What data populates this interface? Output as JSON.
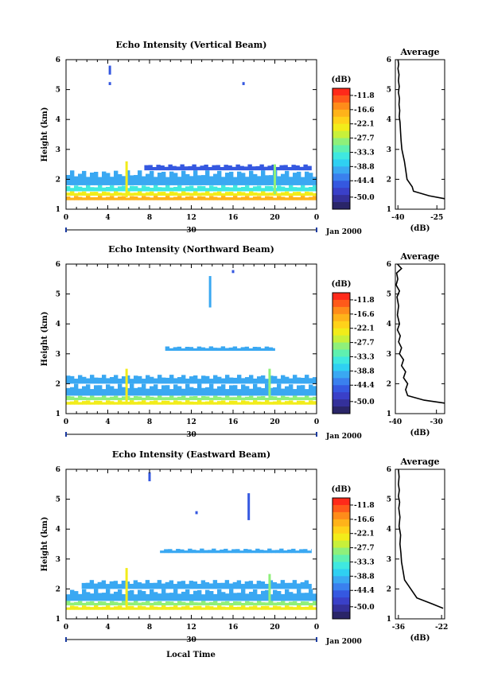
{
  "figure": {
    "x_axis_label": "Local Time",
    "date_label": "Jan 2000",
    "day_label": "30"
  },
  "colorbar": {
    "unit_label": "(dB)",
    "tick_labels": [
      "-11.8",
      "-16.6",
      "-22.1",
      "-27.7",
      "-33.3",
      "-38.8",
      "-44.4",
      "-50.0"
    ],
    "colors": [
      "#ff2a1a",
      "#ff5a1a",
      "#ff8c1a",
      "#ffb31a",
      "#ffd21a",
      "#f2ec1a",
      "#c8f03a",
      "#8ff07a",
      "#5ff0b0",
      "#3fe8e0",
      "#2fd0f2",
      "#3aa8f2",
      "#3a80ee",
      "#3558e0",
      "#3a40c8",
      "#34309a",
      "#2a2568"
    ]
  },
  "chart_data": [
    {
      "type": "heatmap",
      "title": "Echo Intensity (Vertical Beam)",
      "ylabel": "Height (km)",
      "xlim": [
        0,
        24
      ],
      "ylim": [
        1,
        6
      ],
      "x_ticks": [
        "0",
        "4",
        "8",
        "12",
        "16",
        "20",
        "0"
      ],
      "y_ticks": [
        "1",
        "2",
        "3",
        "4",
        "5",
        "6"
      ],
      "colorbar_range_db": [
        -50.0,
        -11.8
      ],
      "layers": [
        {
          "height_km": [
            1.3,
            1.45
          ],
          "level": "-16.6",
          "hour_range": [
            0,
            24
          ]
        },
        {
          "height_km": [
            1.45,
            1.6
          ],
          "level": "-22.1",
          "hour_range": [
            0,
            24
          ]
        },
        {
          "height_km": [
            1.6,
            1.8
          ],
          "level": "-33.3",
          "hour_range": [
            0,
            24
          ]
        },
        {
          "height_km": [
            1.8,
            2.3
          ],
          "level": "-38.8",
          "hour_range": [
            0,
            24
          ]
        },
        {
          "height_km": [
            2.3,
            2.5
          ],
          "level": "-44.4",
          "hour_range": [
            7.5,
            23.5
          ]
        }
      ],
      "features": [
        {
          "hour": 5.8,
          "height_km": [
            1.4,
            2.6
          ],
          "level": "-22.1"
        },
        {
          "hour": 20.0,
          "height_km": [
            1.5,
            2.5
          ],
          "level": "-27.7"
        },
        {
          "hour": 4.2,
          "height_km": [
            5.5,
            5.8
          ],
          "level": "-44.4"
        },
        {
          "hour": 4.2,
          "height_km": [
            5.15,
            5.25
          ],
          "level": "-44.4"
        },
        {
          "hour": 17.0,
          "height_km": [
            5.15,
            5.25
          ],
          "level": "-44.4"
        }
      ]
    },
    {
      "type": "line",
      "title": "Average",
      "xlabel": "(dB)",
      "x_ticks": [
        "-40",
        "-25"
      ],
      "xlim": [
        -41,
        -22
      ],
      "ylim": [
        1,
        6
      ],
      "y_ticks": [
        "1",
        "2",
        "3",
        "4",
        "5",
        "6"
      ],
      "x": [
        -22.0,
        -28.0,
        -34.0,
        -34.5,
        -36.5,
        -37.0,
        -37.5,
        -38.0,
        -38.5,
        -38.8,
        -39.0,
        -39.2,
        -39.5,
        -39.3,
        -39.6,
        -39.4,
        -39.8,
        -39.5,
        -39.8,
        -39.6,
        -40.0,
        -39.7,
        -40.0
      ],
      "y": [
        1.35,
        1.45,
        1.6,
        1.75,
        2.0,
        2.3,
        2.6,
        2.8,
        3.0,
        3.3,
        3.6,
        3.9,
        4.1,
        4.3,
        4.5,
        4.7,
        4.9,
        5.1,
        5.3,
        5.5,
        5.7,
        5.85,
        6.0
      ]
    },
    {
      "type": "heatmap",
      "title": "Echo Intensity (Northward Beam)",
      "ylabel": "Height (km)",
      "xlim": [
        0,
        24
      ],
      "ylim": [
        1,
        6
      ],
      "x_ticks": [
        "0",
        "4",
        "8",
        "12",
        "16",
        "20",
        "0"
      ],
      "y_ticks": [
        "1",
        "2",
        "3",
        "4",
        "5",
        "6"
      ],
      "colorbar_range_db": [
        -50.0,
        -11.8
      ],
      "layers": [
        {
          "height_km": [
            1.3,
            1.45
          ],
          "level": "-22.1",
          "hour_range": [
            0,
            24
          ]
        },
        {
          "height_km": [
            1.45,
            1.6
          ],
          "level": "-27.7",
          "hour_range": [
            0,
            24
          ]
        },
        {
          "height_km": [
            1.6,
            2.0
          ],
          "level": "-38.8",
          "hour_range": [
            0,
            24
          ]
        },
        {
          "height_km": [
            2.0,
            2.3
          ],
          "level": "-38.8",
          "hour_range": [
            0,
            24
          ]
        },
        {
          "height_km": [
            3.1,
            3.25
          ],
          "level": "-38.8",
          "hour_range": [
            9.5,
            20.0
          ]
        }
      ],
      "features": [
        {
          "hour": 5.8,
          "height_km": [
            1.4,
            2.5
          ],
          "level": "-22.1"
        },
        {
          "hour": 19.5,
          "height_km": [
            1.5,
            2.5
          ],
          "level": "-27.7"
        },
        {
          "hour": 13.8,
          "height_km": [
            4.55,
            5.6
          ],
          "level": "-38.8"
        },
        {
          "hour": 16.0,
          "height_km": [
            5.7,
            5.8
          ],
          "level": "-44.4"
        }
      ]
    },
    {
      "type": "line",
      "title": "Average",
      "xlabel": "(dB)",
      "x_ticks": [
        "-40",
        "-30"
      ],
      "xlim": [
        -40,
        -28
      ],
      "ylim": [
        1,
        6
      ],
      "y_ticks": [
        "1",
        "2",
        "3",
        "4",
        "5",
        "6"
      ],
      "x": [
        -28.0,
        -33.0,
        -37.0,
        -37.5,
        -37.0,
        -38.0,
        -37.5,
        -38.5,
        -38.0,
        -39.0,
        -38.5,
        -39.2,
        -38.8,
        -39.5,
        -39.0,
        -39.5,
        -39.2,
        -39.6,
        -39.0,
        -39.8,
        -39.4,
        -39.7,
        -38.5,
        -39.5
      ],
      "y": [
        1.35,
        1.45,
        1.6,
        1.8,
        2.0,
        2.2,
        2.4,
        2.6,
        2.8,
        3.0,
        3.2,
        3.4,
        3.6,
        3.8,
        4.0,
        4.3,
        4.6,
        4.9,
        5.1,
        5.3,
        5.5,
        5.7,
        5.85,
        6.0
      ]
    },
    {
      "type": "heatmap",
      "title": "Echo Intensity (Eastward Beam)",
      "ylabel": "Height (km)",
      "xlim": [
        0,
        24
      ],
      "ylim": [
        1,
        6
      ],
      "x_ticks": [
        "0",
        "4",
        "8",
        "12",
        "16",
        "20",
        "0"
      ],
      "y_ticks": [
        "1",
        "2",
        "3",
        "4",
        "5",
        "6"
      ],
      "colorbar_range_db": [
        -50.0,
        -11.8
      ],
      "layers": [
        {
          "height_km": [
            1.3,
            1.45
          ],
          "level": "-22.1",
          "hour_range": [
            0,
            24
          ]
        },
        {
          "height_km": [
            1.45,
            1.6
          ],
          "level": "-27.7",
          "hour_range": [
            0,
            24
          ]
        },
        {
          "height_km": [
            1.6,
            2.0
          ],
          "level": "-38.8",
          "hour_range": [
            0,
            24
          ]
        },
        {
          "height_km": [
            2.0,
            2.3
          ],
          "level": "-38.8",
          "hour_range": [
            1.5,
            23.5
          ]
        },
        {
          "height_km": [
            3.2,
            3.35
          ],
          "level": "-38.8",
          "hour_range": [
            9.0,
            23.5
          ]
        }
      ],
      "features": [
        {
          "hour": 5.8,
          "height_km": [
            1.4,
            2.7
          ],
          "level": "-22.1"
        },
        {
          "hour": 19.5,
          "height_km": [
            1.5,
            2.5
          ],
          "level": "-27.7"
        },
        {
          "hour": 8.0,
          "height_km": [
            5.6,
            5.9
          ],
          "level": "-44.4"
        },
        {
          "hour": 12.5,
          "height_km": [
            4.5,
            4.6
          ],
          "level": "-44.4"
        },
        {
          "hour": 17.5,
          "height_km": [
            4.3,
            5.2
          ],
          "level": "-44.4"
        }
      ]
    },
    {
      "type": "line",
      "title": "Average",
      "xlabel": "(dB)",
      "x_ticks": [
        "-36",
        "-22"
      ],
      "xlim": [
        -37,
        -21
      ],
      "ylim": [
        1,
        6
      ],
      "y_ticks": [
        "1",
        "2",
        "3",
        "4",
        "5",
        "6"
      ],
      "x": [
        -21.5,
        -25.0,
        -30.0,
        -32.0,
        -34.0,
        -34.5,
        -35.0,
        -35.2,
        -35.5,
        -35.3,
        -35.8,
        -35.5,
        -35.9,
        -35.6,
        -36.0,
        -35.7,
        -36.0,
        -35.8,
        -36.0
      ],
      "y": [
        1.35,
        1.5,
        1.7,
        2.0,
        2.3,
        2.6,
        2.9,
        3.2,
        3.5,
        3.8,
        4.1,
        4.4,
        4.7,
        4.9,
        5.1,
        5.3,
        5.5,
        5.75,
        6.0
      ]
    }
  ]
}
